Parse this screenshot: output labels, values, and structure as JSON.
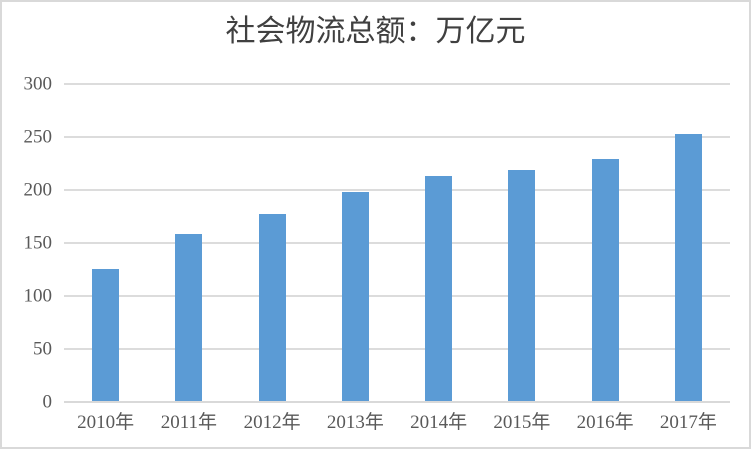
{
  "title": "社会物流总额：万亿元",
  "colors": {
    "bar": "#5B9BD5",
    "gridline": "#DCDCDC",
    "axis_line": "#D9D9D9",
    "axis_label": "#595959",
    "title_text": "#404040",
    "frame_border": "#D9D9D9",
    "background": "#FFFFFF"
  },
  "chart_data": {
    "type": "bar",
    "title": "社会物流总额：万亿元",
    "categories": [
      "2010年",
      "2011年",
      "2012年",
      "2013年",
      "2014年",
      "2015年",
      "2016年",
      "2017年"
    ],
    "values": [
      125.4,
      158.4,
      177.3,
      197.8,
      213.5,
      219.2,
      229.7,
      252.8
    ],
    "xlabel": "",
    "ylabel": "",
    "ylim": [
      0,
      300
    ],
    "yticks": [
      0,
      50,
      100,
      150,
      200,
      250,
      300
    ],
    "grid": true,
    "legend": false,
    "bar_color": "#5B9BD5"
  }
}
